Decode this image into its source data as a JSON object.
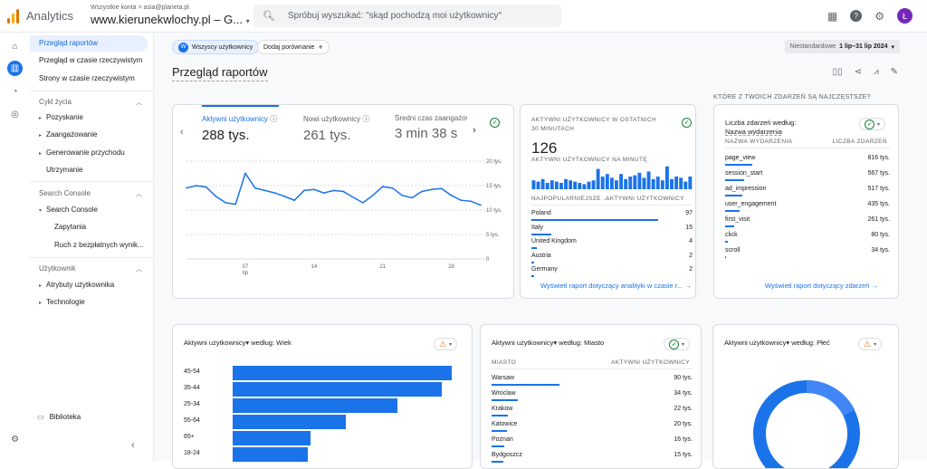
{
  "app": {
    "name": "Analytics"
  },
  "account": {
    "crumb": "Wszystkie konta  >  asia@planeta.pl",
    "property": "www.kierunekwlochy.pl – G...",
    "dropdown_icon": "chevron-down-icon"
  },
  "search": {
    "placeholder": "Spróbuj wyszukać: \"skąd pochodzą moi użytkownicy\""
  },
  "user": {
    "initial": "Ł"
  },
  "sidebar": {
    "items": [
      {
        "label": "Przegląd raportów"
      },
      {
        "label": "Przegląd w czasie rzeczywistym"
      },
      {
        "label": "Strony w czasie rzeczywistym"
      }
    ],
    "lifecycle": {
      "title": "Cykl życia",
      "items": [
        "Pozyskanie",
        "Zaangażowanie",
        "Generowanie przychodu",
        "Utrzymanie"
      ]
    },
    "search_console": {
      "title": "Search Console",
      "group": "Search Console",
      "items": [
        "Zapytania",
        "Ruch z bezpłatnych wynik..."
      ]
    },
    "user_section": {
      "title": "Użytkownik",
      "items": [
        "Atrybuty użytkownika",
        "Technologie"
      ]
    },
    "library": "Biblioteka"
  },
  "filters": {
    "all_users": "Wszyscy użytkownicy",
    "add_compare": "Dodaj porównanie",
    "date_label": "Niestandardowe",
    "date_range": "1 lip–31 lip 2024"
  },
  "page_title": "Przegląd raportów",
  "cards_heading": "KTÓRE Z TWOICH ZDARZEŃ SĄ NAJCZĘSTSZE?",
  "main_card": {
    "tabs": [
      {
        "label": "Aktywni użytkownicy",
        "value": "288 tys."
      },
      {
        "label": "Nowi użytkownicy",
        "value": "261 tys."
      },
      {
        "label": "Średni czas zaangażow",
        "value": "3 min 38 s"
      }
    ],
    "y_ticks": [
      "20 tys.",
      "15 tys.",
      "10 tys.",
      "5 tys.",
      "0"
    ],
    "x_ticks": [
      {
        "label": "07",
        "sub": "lip"
      },
      {
        "label": "14",
        "sub": ""
      },
      {
        "label": "21",
        "sub": ""
      },
      {
        "label": "28",
        "sub": ""
      }
    ]
  },
  "realtime": {
    "title": "AKTYWNI UŻYTKOWNICY W OSTATNICH 30 MINUTACH",
    "value": "126",
    "per_minute": "AKTYWNI UŻYTKOWNICY NA MINUTĘ",
    "col1": "NAJPOPULARNIEJSZE ...",
    "col2": "AKTYWNI UŻYTKOWNICY",
    "rows": [
      {
        "name": "Poland",
        "value": "97"
      },
      {
        "name": "Italy",
        "value": "15"
      },
      {
        "name": "United Kingdom",
        "value": "4"
      },
      {
        "name": "Austria",
        "value": "2"
      },
      {
        "name": "Germany",
        "value": "2"
      }
    ],
    "link": "Wyświetl raport dotyczący analityki w czasie r..."
  },
  "events": {
    "title": "Liczba zdarzeń według: Nazwa wydarzenia",
    "title1": "Liczba zdarzeń według:",
    "title2": "Nazwa wydarzenia",
    "col1": "NAZWA WYDARZENIA",
    "col2": "LICZBA ZDARZEŃ",
    "rows": [
      {
        "name": "page_view",
        "value": "816 tys."
      },
      {
        "name": "session_start",
        "value": "567 tys."
      },
      {
        "name": "ad_impression",
        "value": "517 tys."
      },
      {
        "name": "user_engagement",
        "value": "435 tys."
      },
      {
        "name": "first_visit",
        "value": "261 tys."
      },
      {
        "name": "click",
        "value": "80 tys."
      },
      {
        "name": "scroll",
        "value": "34 tys."
      }
    ],
    "link": "Wyświetl raport dotyczący zdarzeń"
  },
  "age_card": {
    "title": "Aktywni użytkownicy▾ według: Wiek",
    "rows": [
      {
        "label": "45-54",
        "value": 0.93
      },
      {
        "label": "35-44",
        "value": 0.89
      },
      {
        "label": "25-34",
        "value": 0.7
      },
      {
        "label": "55-64",
        "value": 0.48
      },
      {
        "label": "65+",
        "value": 0.33
      },
      {
        "label": "18-24",
        "value": 0.32
      }
    ]
  },
  "city_card": {
    "title": "Aktywni użytkownicy▾ według: Miasto",
    "col1": "MIASTO",
    "col2": "AKTYWNI UŻYTKOWNICY",
    "rows": [
      {
        "name": "Warsaw",
        "value": "90 tys."
      },
      {
        "name": "Wroclaw",
        "value": "34 tys."
      },
      {
        "name": "Krakow",
        "value": "22 tys."
      },
      {
        "name": "Katowice",
        "value": "20 tys."
      },
      {
        "name": "Poznan",
        "value": "16 tys."
      },
      {
        "name": "Bydgoszcz",
        "value": "15 tys."
      }
    ]
  },
  "gender_card": {
    "title": "Aktywni użytkownicy▾ według: Płeć"
  },
  "chart_data": {
    "type": "line",
    "title": "Aktywni użytkownicy",
    "x": [
      "1",
      "2",
      "3",
      "4",
      "5",
      "6",
      "7",
      "8",
      "9",
      "10",
      "11",
      "12",
      "13",
      "14",
      "15",
      "16",
      "17",
      "18",
      "19",
      "20",
      "21",
      "22",
      "23",
      "24",
      "25",
      "26",
      "27",
      "28",
      "29",
      "30",
      "31"
    ],
    "series": [
      {
        "name": "Aktywni użytkownicy",
        "values": [
          14.5,
          15,
          14.7,
          12.8,
          11.5,
          11.2,
          17.5,
          14.5,
          14,
          13.5,
          12.8,
          12,
          14,
          14.2,
          13.5,
          14,
          13.8,
          12.6,
          11.5,
          13,
          14.8,
          14.5,
          13,
          12.5,
          13.8,
          14.2,
          14.4,
          13,
          12,
          11.8,
          11
        ]
      }
    ],
    "ylim": [
      0,
      20
    ],
    "grid": true
  },
  "colors": {
    "accent": "#1a73e8",
    "bar_light": "#1a73e8",
    "ok": "#188038",
    "warn": "#e8710a"
  }
}
